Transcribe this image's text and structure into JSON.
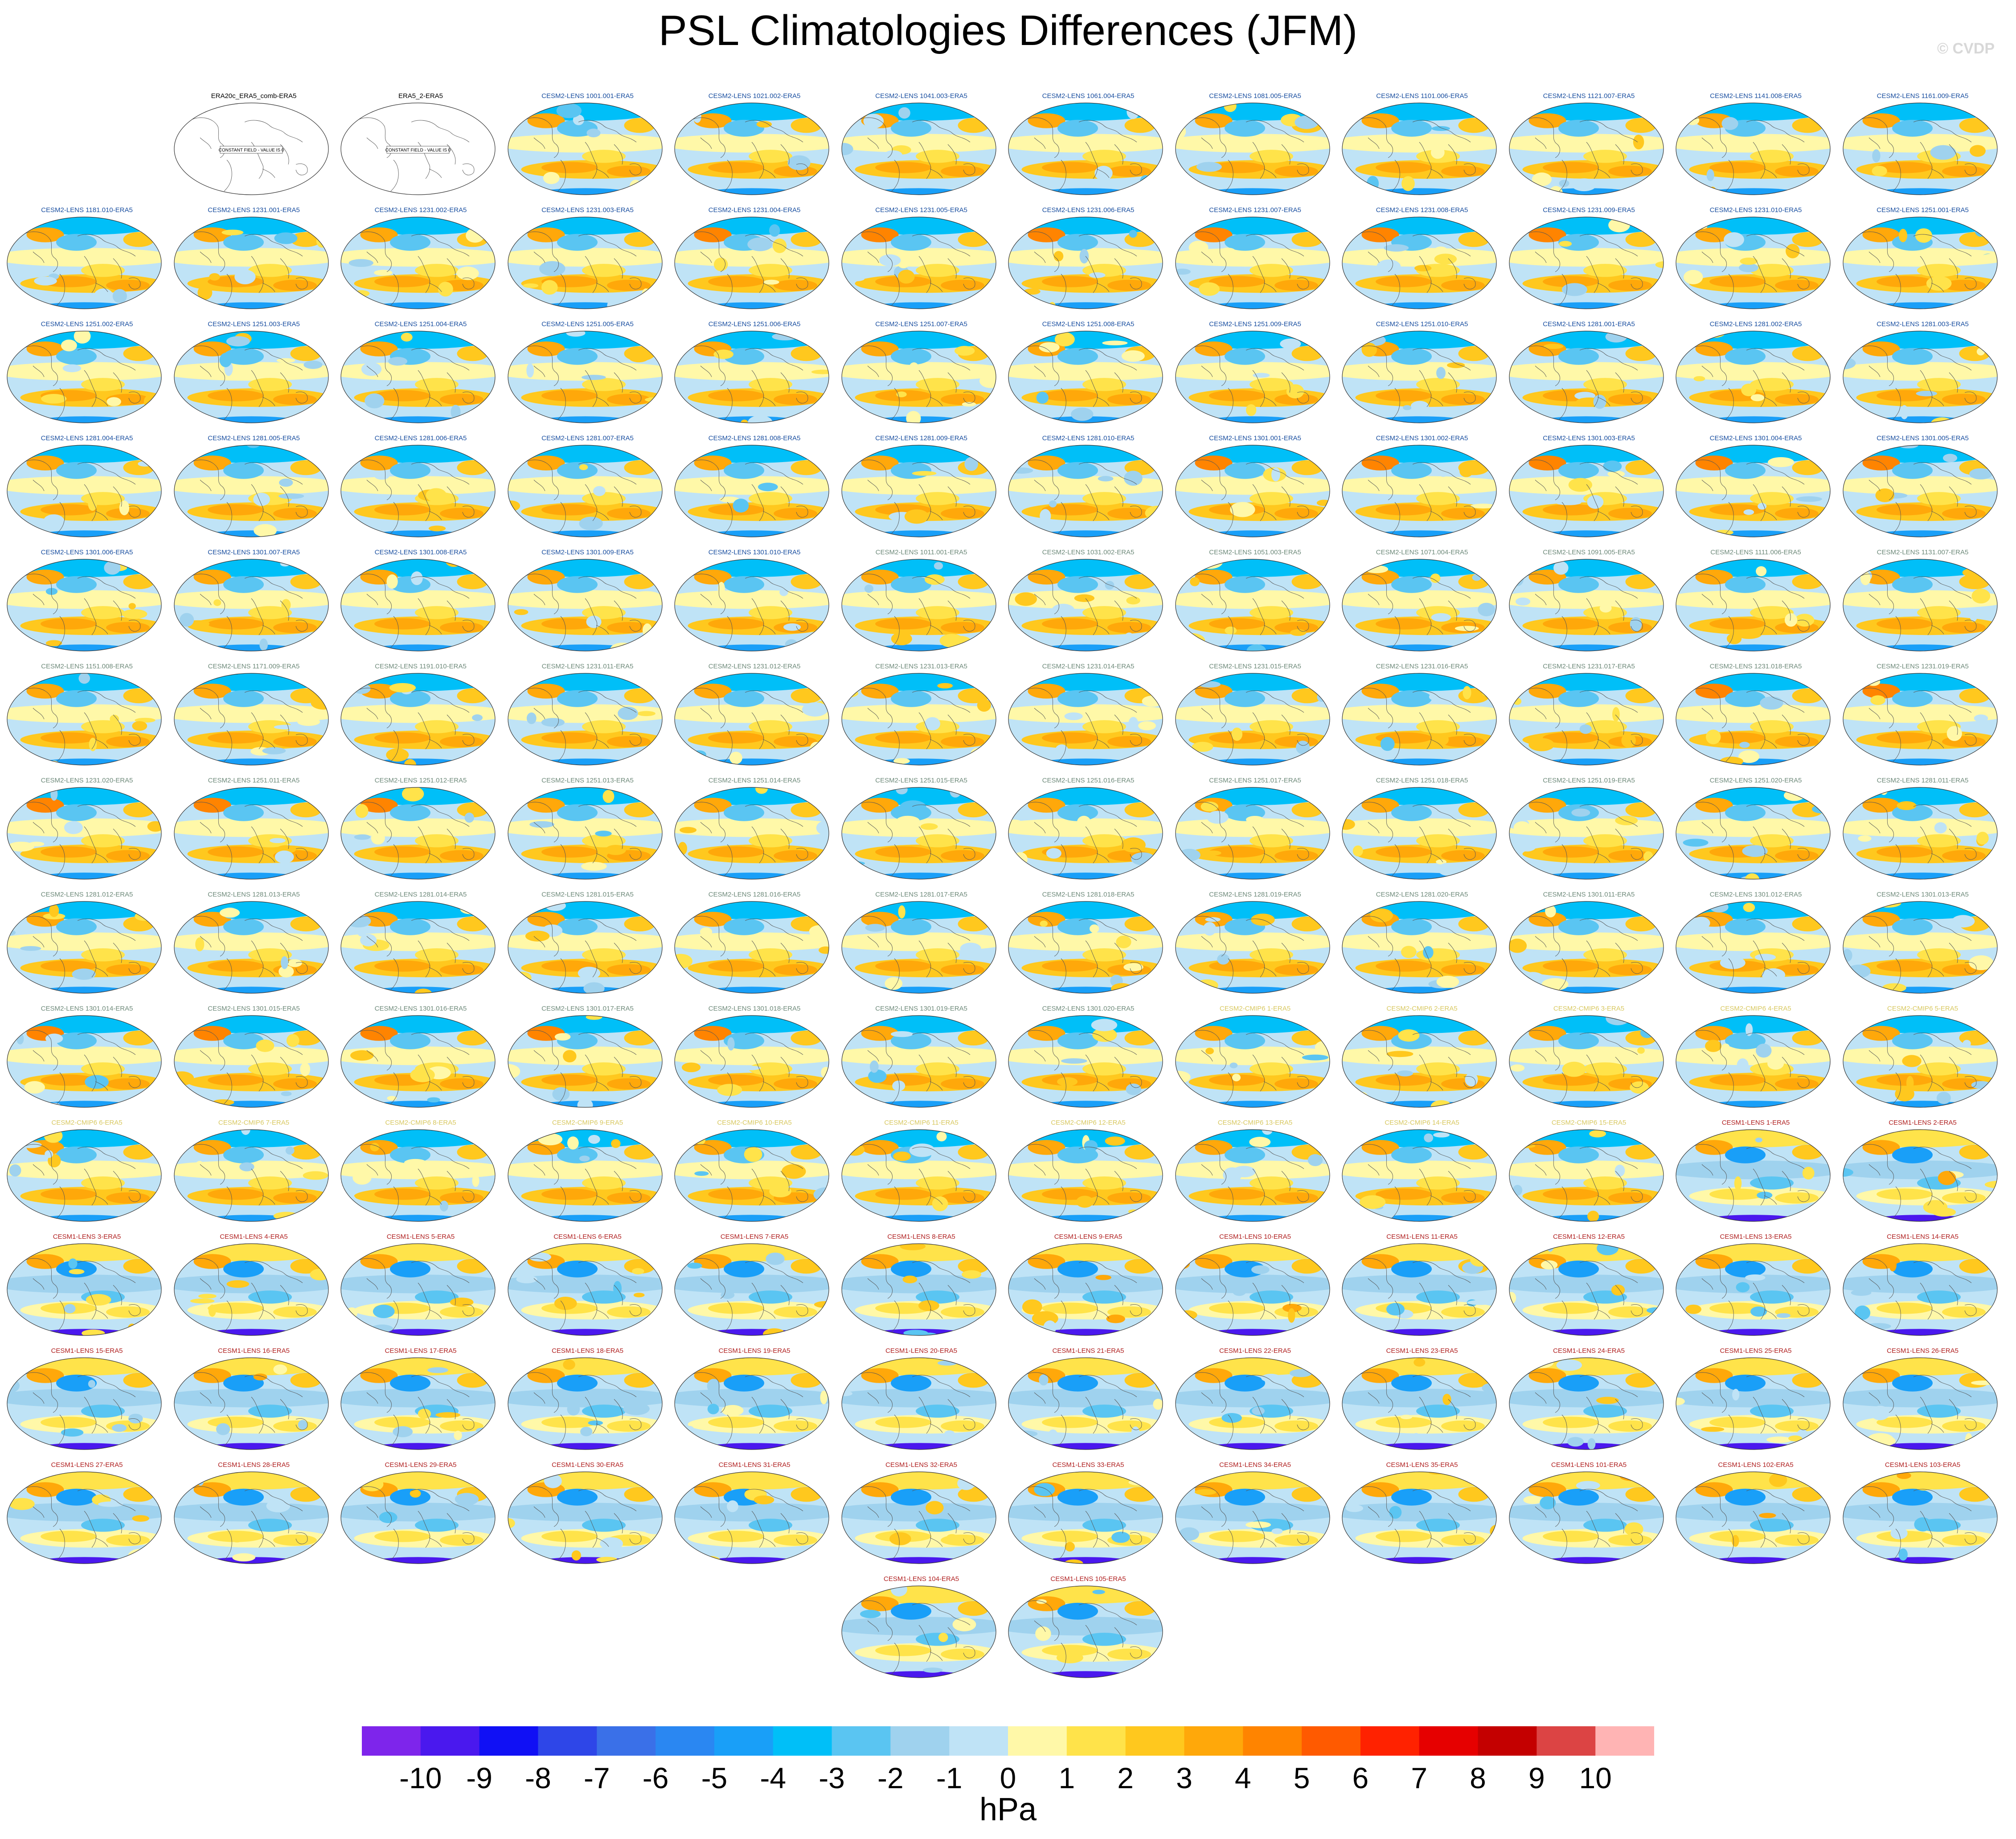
{
  "title": "PSL Climatologies Differences (JFM)",
  "copyright": "© CVDP",
  "units": "hPa",
  "colorbar": {
    "ticks": [
      "-10",
      "-9",
      "-8",
      "-7",
      "-6",
      "-5",
      "-4",
      "-3",
      "-2",
      "-1",
      "0",
      "1",
      "2",
      "3",
      "4",
      "5",
      "6",
      "7",
      "8",
      "9",
      "10"
    ],
    "colors": [
      "#7e25eb",
      "#4a18ee",
      "#1010f5",
      "#2e46e8",
      "#3a70e8",
      "#2a87f2",
      "#199ff8",
      "#00bff8",
      "#5ac5f2",
      "#9fd2ee",
      "#bfe3f6",
      "#fff8a8",
      "#ffe34a",
      "#ffc81e",
      "#ffa80a",
      "#ff8400",
      "#ff5a00",
      "#ff2200",
      "#e60000",
      "#c40000",
      "#dc4444",
      "#ffb4b4"
    ]
  },
  "chart_data": {
    "type": "heatmap",
    "title": "PSL Climatologies Differences (JFM)",
    "colorbar_label": "hPa",
    "color_range": [
      -10,
      10
    ],
    "panels": [
      {
        "label": "ERA20c_ERA5_comb-ERA5",
        "group": "obs",
        "note": "CONSTANT FIELD - VALUE IS 0"
      },
      {
        "label": "ERA5_2-ERA5",
        "group": "obs",
        "note": "CONSTANT FIELD - VALUE IS 0"
      },
      {
        "label": "CESM2-LENS 1001.001-ERA5",
        "group": "cesm2"
      },
      {
        "label": "CESM2-LENS 1021.002-ERA5",
        "group": "cesm2"
      },
      {
        "label": "CESM2-LENS 1041.003-ERA5",
        "group": "cesm2"
      },
      {
        "label": "CESM2-LENS 1061.004-ERA5",
        "group": "cesm2"
      },
      {
        "label": "CESM2-LENS 1081.005-ERA5",
        "group": "cesm2"
      },
      {
        "label": "CESM2-LENS 1101.006-ERA5",
        "group": "cesm2"
      },
      {
        "label": "CESM2-LENS 1121.007-ERA5",
        "group": "cesm2"
      },
      {
        "label": "CESM2-LENS 1141.008-ERA5",
        "group": "cesm2"
      },
      {
        "label": "CESM2-LENS 1161.009-ERA5",
        "group": "cesm2"
      },
      {
        "label": "CESM2-LENS 1181.010-ERA5",
        "group": "cesm2"
      },
      {
        "label": "CESM2-LENS 1231.001-ERA5",
        "group": "cesm2"
      },
      {
        "label": "CESM2-LENS 1231.002-ERA5",
        "group": "cesm2"
      },
      {
        "label": "CESM2-LENS 1231.003-ERA5",
        "group": "cesm2"
      },
      {
        "label": "CESM2-LENS 1231.004-ERA5",
        "group": "cesm2"
      },
      {
        "label": "CESM2-LENS 1231.005-ERA5",
        "group": "cesm2"
      },
      {
        "label": "CESM2-LENS 1231.006-ERA5",
        "group": "cesm2"
      },
      {
        "label": "CESM2-LENS 1231.007-ERA5",
        "group": "cesm2"
      },
      {
        "label": "CESM2-LENS 1231.008-ERA5",
        "group": "cesm2"
      },
      {
        "label": "CESM2-LENS 1231.009-ERA5",
        "group": "cesm2"
      },
      {
        "label": "CESM2-LENS 1231.010-ERA5",
        "group": "cesm2"
      },
      {
        "label": "CESM2-LENS 1251.001-ERA5",
        "group": "cesm2"
      },
      {
        "label": "CESM2-LENS 1251.002-ERA5",
        "group": "cesm2"
      },
      {
        "label": "CESM2-LENS 1251.003-ERA5",
        "group": "cesm2"
      },
      {
        "label": "CESM2-LENS 1251.004-ERA5",
        "group": "cesm2"
      },
      {
        "label": "CESM2-LENS 1251.005-ERA5",
        "group": "cesm2"
      },
      {
        "label": "CESM2-LENS 1251.006-ERA5",
        "group": "cesm2"
      },
      {
        "label": "CESM2-LENS 1251.007-ERA5",
        "group": "cesm2"
      },
      {
        "label": "CESM2-LENS 1251.008-ERA5",
        "group": "cesm2"
      },
      {
        "label": "CESM2-LENS 1251.009-ERA5",
        "group": "cesm2"
      },
      {
        "label": "CESM2-LENS 1251.010-ERA5",
        "group": "cesm2"
      },
      {
        "label": "CESM2-LENS 1281.001-ERA5",
        "group": "cesm2"
      },
      {
        "label": "CESM2-LENS 1281.002-ERA5",
        "group": "cesm2"
      },
      {
        "label": "CESM2-LENS 1281.003-ERA5",
        "group": "cesm2"
      },
      {
        "label": "CESM2-LENS 1281.004-ERA5",
        "group": "cesm2"
      },
      {
        "label": "CESM2-LENS 1281.005-ERA5",
        "group": "cesm2"
      },
      {
        "label": "CESM2-LENS 1281.006-ERA5",
        "group": "cesm2"
      },
      {
        "label": "CESM2-LENS 1281.007-ERA5",
        "group": "cesm2"
      },
      {
        "label": "CESM2-LENS 1281.008-ERA5",
        "group": "cesm2"
      },
      {
        "label": "CESM2-LENS 1281.009-ERA5",
        "group": "cesm2"
      },
      {
        "label": "CESM2-LENS 1281.010-ERA5",
        "group": "cesm2"
      },
      {
        "label": "CESM2-LENS 1301.001-ERA5",
        "group": "cesm2"
      },
      {
        "label": "CESM2-LENS 1301.002-ERA5",
        "group": "cesm2"
      },
      {
        "label": "CESM2-LENS 1301.003-ERA5",
        "group": "cesm2"
      },
      {
        "label": "CESM2-LENS 1301.004-ERA5",
        "group": "cesm2"
      },
      {
        "label": "CESM2-LENS 1301.005-ERA5",
        "group": "cesm2"
      },
      {
        "label": "CESM2-LENS 1301.006-ERA5",
        "group": "cesm2"
      },
      {
        "label": "CESM2-LENS 1301.007-ERA5",
        "group": "cesm2"
      },
      {
        "label": "CESM2-LENS 1301.008-ERA5",
        "group": "cesm2"
      },
      {
        "label": "CESM2-LENS 1301.009-ERA5",
        "group": "cesm2"
      },
      {
        "label": "CESM2-LENS 1301.010-ERA5",
        "group": "cesm2"
      },
      {
        "label": "CESM2-LENS 1011.001-ERA5",
        "group": "cesm2-smbb"
      },
      {
        "label": "CESM2-LENS 1031.002-ERA5",
        "group": "cesm2-smbb"
      },
      {
        "label": "CESM2-LENS 1051.003-ERA5",
        "group": "cesm2-smbb"
      },
      {
        "label": "CESM2-LENS 1071.004-ERA5",
        "group": "cesm2-smbb"
      },
      {
        "label": "CESM2-LENS 1091.005-ERA5",
        "group": "cesm2-smbb"
      },
      {
        "label": "CESM2-LENS 1111.006-ERA5",
        "group": "cesm2-smbb"
      },
      {
        "label": "CESM2-LENS 1131.007-ERA5",
        "group": "cesm2-smbb"
      },
      {
        "label": "CESM2-LENS 1151.008-ERA5",
        "group": "cesm2-smbb"
      },
      {
        "label": "CESM2-LENS 1171.009-ERA5",
        "group": "cesm2-smbb"
      },
      {
        "label": "CESM2-LENS 1191.010-ERA5",
        "group": "cesm2-smbb"
      },
      {
        "label": "CESM2-LENS 1231.011-ERA5",
        "group": "cesm2-smbb"
      },
      {
        "label": "CESM2-LENS 1231.012-ERA5",
        "group": "cesm2-smbb"
      },
      {
        "label": "CESM2-LENS 1231.013-ERA5",
        "group": "cesm2-smbb"
      },
      {
        "label": "CESM2-LENS 1231.014-ERA5",
        "group": "cesm2-smbb"
      },
      {
        "label": "CESM2-LENS 1231.015-ERA5",
        "group": "cesm2-smbb"
      },
      {
        "label": "CESM2-LENS 1231.016-ERA5",
        "group": "cesm2-smbb"
      },
      {
        "label": "CESM2-LENS 1231.017-ERA5",
        "group": "cesm2-smbb"
      },
      {
        "label": "CESM2-LENS 1231.018-ERA5",
        "group": "cesm2-smbb"
      },
      {
        "label": "CESM2-LENS 1231.019-ERA5",
        "group": "cesm2-smbb"
      },
      {
        "label": "CESM2-LENS 1231.020-ERA5",
        "group": "cesm2-smbb"
      },
      {
        "label": "CESM2-LENS 1251.011-ERA5",
        "group": "cesm2-smbb"
      },
      {
        "label": "CESM2-LENS 1251.012-ERA5",
        "group": "cesm2-smbb"
      },
      {
        "label": "CESM2-LENS 1251.013-ERA5",
        "group": "cesm2-smbb"
      },
      {
        "label": "CESM2-LENS 1251.014-ERA5",
        "group": "cesm2-smbb"
      },
      {
        "label": "CESM2-LENS 1251.015-ERA5",
        "group": "cesm2-smbb"
      },
      {
        "label": "CESM2-LENS 1251.016-ERA5",
        "group": "cesm2-smbb"
      },
      {
        "label": "CESM2-LENS 1251.017-ERA5",
        "group": "cesm2-smbb"
      },
      {
        "label": "CESM2-LENS 1251.018-ERA5",
        "group": "cesm2-smbb"
      },
      {
        "label": "CESM2-LENS 1251.019-ERA5",
        "group": "cesm2-smbb"
      },
      {
        "label": "CESM2-LENS 1251.020-ERA5",
        "group": "cesm2-smbb"
      },
      {
        "label": "CESM2-LENS 1281.011-ERA5",
        "group": "cesm2-smbb"
      },
      {
        "label": "CESM2-LENS 1281.012-ERA5",
        "group": "cesm2-smbb"
      },
      {
        "label": "CESM2-LENS 1281.013-ERA5",
        "group": "cesm2-smbb"
      },
      {
        "label": "CESM2-LENS 1281.014-ERA5",
        "group": "cesm2-smbb"
      },
      {
        "label": "CESM2-LENS 1281.015-ERA5",
        "group": "cesm2-smbb"
      },
      {
        "label": "CESM2-LENS 1281.016-ERA5",
        "group": "cesm2-smbb"
      },
      {
        "label": "CESM2-LENS 1281.017-ERA5",
        "group": "cesm2-smbb"
      },
      {
        "label": "CESM2-LENS 1281.018-ERA5",
        "group": "cesm2-smbb"
      },
      {
        "label": "CESM2-LENS 1281.019-ERA5",
        "group": "cesm2-smbb"
      },
      {
        "label": "CESM2-LENS 1281.020-ERA5",
        "group": "cesm2-smbb"
      },
      {
        "label": "CESM2-LENS 1301.011-ERA5",
        "group": "cesm2-smbb"
      },
      {
        "label": "CESM2-LENS 1301.012-ERA5",
        "group": "cesm2-smbb"
      },
      {
        "label": "CESM2-LENS 1301.013-ERA5",
        "group": "cesm2-smbb"
      },
      {
        "label": "CESM2-LENS 1301.014-ERA5",
        "group": "cesm2-smbb"
      },
      {
        "label": "CESM2-LENS 1301.015-ERA5",
        "group": "cesm2-smbb"
      },
      {
        "label": "CESM2-LENS 1301.016-ERA5",
        "group": "cesm2-smbb"
      },
      {
        "label": "CESM2-LENS 1301.017-ERA5",
        "group": "cesm2-smbb"
      },
      {
        "label": "CESM2-LENS 1301.018-ERA5",
        "group": "cesm2-smbb"
      },
      {
        "label": "CESM2-LENS 1301.019-ERA5",
        "group": "cesm2-smbb"
      },
      {
        "label": "CESM2-LENS 1301.020-ERA5",
        "group": "cesm2-smbb"
      },
      {
        "label": "CESM2-CMIP6 1-ERA5",
        "group": "cmip6"
      },
      {
        "label": "CESM2-CMIP6 2-ERA5",
        "group": "cmip6"
      },
      {
        "label": "CESM2-CMIP6 3-ERA5",
        "group": "cmip6"
      },
      {
        "label": "CESM2-CMIP6 4-ERA5",
        "group": "cmip6"
      },
      {
        "label": "CESM2-CMIP6 5-ERA5",
        "group": "cmip6"
      },
      {
        "label": "CESM2-CMIP6 6-ERA5",
        "group": "cmip6"
      },
      {
        "label": "CESM2-CMIP6 7-ERA5",
        "group": "cmip6"
      },
      {
        "label": "CESM2-CMIP6 8-ERA5",
        "group": "cmip6"
      },
      {
        "label": "CESM2-CMIP6 9-ERA5",
        "group": "cmip6"
      },
      {
        "label": "CESM2-CMIP6 10-ERA5",
        "group": "cmip6"
      },
      {
        "label": "CESM2-CMIP6 11-ERA5",
        "group": "cmip6"
      },
      {
        "label": "CESM2-CMIP6 12-ERA5",
        "group": "cmip6"
      },
      {
        "label": "CESM2-CMIP6 13-ERA5",
        "group": "cmip6"
      },
      {
        "label": "CESM2-CMIP6 14-ERA5",
        "group": "cmip6"
      },
      {
        "label": "CESM2-CMIP6 15-ERA5",
        "group": "cmip6"
      },
      {
        "label": "CESM1-LENS 1-ERA5",
        "group": "cesm1"
      },
      {
        "label": "CESM1-LENS 2-ERA5",
        "group": "cesm1"
      },
      {
        "label": "CESM1-LENS 3-ERA5",
        "group": "cesm1"
      },
      {
        "label": "CESM1-LENS 4-ERA5",
        "group": "cesm1"
      },
      {
        "label": "CESM1-LENS 5-ERA5",
        "group": "cesm1"
      },
      {
        "label": "CESM1-LENS 6-ERA5",
        "group": "cesm1"
      },
      {
        "label": "CESM1-LENS 7-ERA5",
        "group": "cesm1"
      },
      {
        "label": "CESM1-LENS 8-ERA5",
        "group": "cesm1"
      },
      {
        "label": "CESM1-LENS 9-ERA5",
        "group": "cesm1"
      },
      {
        "label": "CESM1-LENS 10-ERA5",
        "group": "cesm1"
      },
      {
        "label": "CESM1-LENS 11-ERA5",
        "group": "cesm1"
      },
      {
        "label": "CESM1-LENS 12-ERA5",
        "group": "cesm1"
      },
      {
        "label": "CESM1-LENS 13-ERA5",
        "group": "cesm1"
      },
      {
        "label": "CESM1-LENS 14-ERA5",
        "group": "cesm1"
      },
      {
        "label": "CESM1-LENS 15-ERA5",
        "group": "cesm1"
      },
      {
        "label": "CESM1-LENS 16-ERA5",
        "group": "cesm1"
      },
      {
        "label": "CESM1-LENS 17-ERA5",
        "group": "cesm1"
      },
      {
        "label": "CESM1-LENS 18-ERA5",
        "group": "cesm1"
      },
      {
        "label": "CESM1-LENS 19-ERA5",
        "group": "cesm1"
      },
      {
        "label": "CESM1-LENS 20-ERA5",
        "group": "cesm1"
      },
      {
        "label": "CESM1-LENS 21-ERA5",
        "group": "cesm1"
      },
      {
        "label": "CESM1-LENS 22-ERA5",
        "group": "cesm1"
      },
      {
        "label": "CESM1-LENS 23-ERA5",
        "group": "cesm1"
      },
      {
        "label": "CESM1-LENS 24-ERA5",
        "group": "cesm1"
      },
      {
        "label": "CESM1-LENS 25-ERA5",
        "group": "cesm1"
      },
      {
        "label": "CESM1-LENS 26-ERA5",
        "group": "cesm1"
      },
      {
        "label": "CESM1-LENS 27-ERA5",
        "group": "cesm1"
      },
      {
        "label": "CESM1-LENS 28-ERA5",
        "group": "cesm1"
      },
      {
        "label": "CESM1-LENS 29-ERA5",
        "group": "cesm1"
      },
      {
        "label": "CESM1-LENS 30-ERA5",
        "group": "cesm1"
      },
      {
        "label": "CESM1-LENS 31-ERA5",
        "group": "cesm1"
      },
      {
        "label": "CESM1-LENS 32-ERA5",
        "group": "cesm1"
      },
      {
        "label": "CESM1-LENS 33-ERA5",
        "group": "cesm1"
      },
      {
        "label": "CESM1-LENS 34-ERA5",
        "group": "cesm1"
      },
      {
        "label": "CESM1-LENS 35-ERA5",
        "group": "cesm1"
      },
      {
        "label": "CESM1-LENS 101-ERA5",
        "group": "cesm1"
      },
      {
        "label": "CESM1-LENS 102-ERA5",
        "group": "cesm1"
      },
      {
        "label": "CESM1-LENS 103-ERA5",
        "group": "cesm1"
      },
      {
        "label": "CESM1-LENS 104-ERA5",
        "group": "cesm1"
      },
      {
        "label": "CESM1-LENS 105-ERA5",
        "group": "cesm1"
      }
    ],
    "group_label_colors": {
      "obs": "#000000",
      "cesm2": "#1a4fa0",
      "cesm2-smbb": "#6e8a7a",
      "cmip6": "#d8c860",
      "cesm1": "#b02020"
    }
  }
}
